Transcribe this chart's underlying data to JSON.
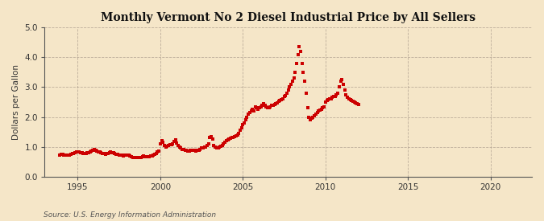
{
  "title": "Monthly Vermont No 2 Diesel Industrial Price by All Sellers",
  "ylabel": "Dollars per Gallon",
  "source": "Source: U.S. Energy Information Administration",
  "background_color": "#f5e6c8",
  "plot_bg_color": "#f5e6c8",
  "line_color": "#cc0000",
  "marker": "s",
  "markersize": 2.2,
  "xlim_left": 1993.0,
  "xlim_right": 2022.5,
  "ylim_bottom": 0.0,
  "ylim_top": 5.0,
  "xticks": [
    1995,
    2000,
    2005,
    2010,
    2015,
    2020
  ],
  "yticks": [
    0.0,
    1.0,
    2.0,
    3.0,
    4.0,
    5.0
  ],
  "data": [
    [
      1993.917,
      0.73
    ],
    [
      1994.0,
      0.75
    ],
    [
      1994.083,
      0.74
    ],
    [
      1994.167,
      0.73
    ],
    [
      1994.25,
      0.72
    ],
    [
      1994.333,
      0.71
    ],
    [
      1994.417,
      0.72
    ],
    [
      1994.5,
      0.73
    ],
    [
      1994.583,
      0.74
    ],
    [
      1994.667,
      0.76
    ],
    [
      1994.75,
      0.78
    ],
    [
      1994.833,
      0.8
    ],
    [
      1994.917,
      0.82
    ],
    [
      1995.0,
      0.84
    ],
    [
      1995.083,
      0.82
    ],
    [
      1995.167,
      0.8
    ],
    [
      1995.25,
      0.79
    ],
    [
      1995.333,
      0.78
    ],
    [
      1995.417,
      0.77
    ],
    [
      1995.5,
      0.78
    ],
    [
      1995.583,
      0.79
    ],
    [
      1995.667,
      0.8
    ],
    [
      1995.75,
      0.82
    ],
    [
      1995.833,
      0.85
    ],
    [
      1995.917,
      0.87
    ],
    [
      1996.0,
      0.9
    ],
    [
      1996.083,
      0.88
    ],
    [
      1996.167,
      0.86
    ],
    [
      1996.25,
      0.84
    ],
    [
      1996.333,
      0.82
    ],
    [
      1996.417,
      0.8
    ],
    [
      1996.5,
      0.78
    ],
    [
      1996.583,
      0.76
    ],
    [
      1996.667,
      0.75
    ],
    [
      1996.75,
      0.76
    ],
    [
      1996.833,
      0.78
    ],
    [
      1996.917,
      0.8
    ],
    [
      1997.0,
      0.82
    ],
    [
      1997.083,
      0.81
    ],
    [
      1997.167,
      0.79
    ],
    [
      1997.25,
      0.77
    ],
    [
      1997.333,
      0.75
    ],
    [
      1997.417,
      0.74
    ],
    [
      1997.5,
      0.73
    ],
    [
      1997.583,
      0.72
    ],
    [
      1997.667,
      0.71
    ],
    [
      1997.75,
      0.7
    ],
    [
      1997.833,
      0.71
    ],
    [
      1997.917,
      0.72
    ],
    [
      1998.0,
      0.73
    ],
    [
      1998.083,
      0.71
    ],
    [
      1998.167,
      0.69
    ],
    [
      1998.25,
      0.67
    ],
    [
      1998.333,
      0.65
    ],
    [
      1998.417,
      0.64
    ],
    [
      1998.5,
      0.63
    ],
    [
      1998.583,
      0.63
    ],
    [
      1998.667,
      0.63
    ],
    [
      1998.75,
      0.64
    ],
    [
      1998.833,
      0.65
    ],
    [
      1998.917,
      0.66
    ],
    [
      1999.0,
      0.68
    ],
    [
      1999.083,
      0.67
    ],
    [
      1999.167,
      0.67
    ],
    [
      1999.25,
      0.67
    ],
    [
      1999.333,
      0.67
    ],
    [
      1999.417,
      0.68
    ],
    [
      1999.5,
      0.7
    ],
    [
      1999.583,
      0.72
    ],
    [
      1999.667,
      0.75
    ],
    [
      1999.75,
      0.78
    ],
    [
      1999.833,
      0.82
    ],
    [
      1999.917,
      0.86
    ],
    [
      2000.0,
      1.1
    ],
    [
      2000.083,
      1.2
    ],
    [
      2000.167,
      1.15
    ],
    [
      2000.25,
      1.05
    ],
    [
      2000.333,
      1.0
    ],
    [
      2000.417,
      1.02
    ],
    [
      2000.5,
      1.05
    ],
    [
      2000.583,
      1.07
    ],
    [
      2000.667,
      1.08
    ],
    [
      2000.75,
      1.1
    ],
    [
      2000.833,
      1.18
    ],
    [
      2000.917,
      1.22
    ],
    [
      2001.0,
      1.12
    ],
    [
      2001.083,
      1.05
    ],
    [
      2001.167,
      1.0
    ],
    [
      2001.25,
      0.95
    ],
    [
      2001.333,
      0.92
    ],
    [
      2001.417,
      0.9
    ],
    [
      2001.5,
      0.88
    ],
    [
      2001.583,
      0.87
    ],
    [
      2001.667,
      0.86
    ],
    [
      2001.75,
      0.85
    ],
    [
      2001.833,
      0.87
    ],
    [
      2001.917,
      0.88
    ],
    [
      2002.0,
      0.88
    ],
    [
      2002.083,
      0.87
    ],
    [
      2002.167,
      0.86
    ],
    [
      2002.25,
      0.87
    ],
    [
      2002.333,
      0.89
    ],
    [
      2002.417,
      0.92
    ],
    [
      2002.5,
      0.95
    ],
    [
      2002.583,
      0.97
    ],
    [
      2002.667,
      0.98
    ],
    [
      2002.75,
      1.0
    ],
    [
      2002.833,
      1.05
    ],
    [
      2002.917,
      1.1
    ],
    [
      2003.0,
      1.3
    ],
    [
      2003.083,
      1.35
    ],
    [
      2003.167,
      1.25
    ],
    [
      2003.25,
      1.05
    ],
    [
      2003.333,
      1.0
    ],
    [
      2003.417,
      0.97
    ],
    [
      2003.5,
      0.97
    ],
    [
      2003.583,
      1.0
    ],
    [
      2003.667,
      1.02
    ],
    [
      2003.75,
      1.05
    ],
    [
      2003.833,
      1.1
    ],
    [
      2003.917,
      1.15
    ],
    [
      2004.0,
      1.2
    ],
    [
      2004.083,
      1.22
    ],
    [
      2004.167,
      1.25
    ],
    [
      2004.25,
      1.28
    ],
    [
      2004.333,
      1.3
    ],
    [
      2004.417,
      1.32
    ],
    [
      2004.5,
      1.35
    ],
    [
      2004.583,
      1.38
    ],
    [
      2004.667,
      1.4
    ],
    [
      2004.75,
      1.45
    ],
    [
      2004.833,
      1.55
    ],
    [
      2004.917,
      1.65
    ],
    [
      2005.0,
      1.75
    ],
    [
      2005.083,
      1.8
    ],
    [
      2005.167,
      1.9
    ],
    [
      2005.25,
      2.0
    ],
    [
      2005.333,
      2.1
    ],
    [
      2005.417,
      2.15
    ],
    [
      2005.5,
      2.2
    ],
    [
      2005.583,
      2.25
    ],
    [
      2005.667,
      2.2
    ],
    [
      2005.75,
      2.35
    ],
    [
      2005.833,
      2.3
    ],
    [
      2005.917,
      2.25
    ],
    [
      2006.0,
      2.3
    ],
    [
      2006.083,
      2.35
    ],
    [
      2006.167,
      2.4
    ],
    [
      2006.25,
      2.45
    ],
    [
      2006.333,
      2.4
    ],
    [
      2006.417,
      2.35
    ],
    [
      2006.5,
      2.3
    ],
    [
      2006.583,
      2.32
    ],
    [
      2006.667,
      2.35
    ],
    [
      2006.75,
      2.38
    ],
    [
      2006.833,
      2.4
    ],
    [
      2006.917,
      2.42
    ],
    [
      2007.0,
      2.45
    ],
    [
      2007.083,
      2.48
    ],
    [
      2007.167,
      2.52
    ],
    [
      2007.25,
      2.55
    ],
    [
      2007.333,
      2.58
    ],
    [
      2007.417,
      2.62
    ],
    [
      2007.5,
      2.68
    ],
    [
      2007.583,
      2.72
    ],
    [
      2007.667,
      2.8
    ],
    [
      2007.75,
      2.9
    ],
    [
      2007.833,
      3.0
    ],
    [
      2007.917,
      3.1
    ],
    [
      2008.0,
      3.2
    ],
    [
      2008.083,
      3.3
    ],
    [
      2008.167,
      3.5
    ],
    [
      2008.25,
      3.8
    ],
    [
      2008.333,
      4.1
    ],
    [
      2008.417,
      4.35
    ],
    [
      2008.5,
      4.2
    ],
    [
      2008.583,
      3.8
    ],
    [
      2008.667,
      3.5
    ],
    [
      2008.75,
      3.2
    ],
    [
      2008.833,
      2.8
    ],
    [
      2008.917,
      2.3
    ],
    [
      2009.0,
      2.0
    ],
    [
      2009.083,
      1.9
    ],
    [
      2009.167,
      1.95
    ],
    [
      2009.25,
      2.0
    ],
    [
      2009.333,
      2.05
    ],
    [
      2009.417,
      2.1
    ],
    [
      2009.5,
      2.15
    ],
    [
      2009.583,
      2.2
    ],
    [
      2009.667,
      2.22
    ],
    [
      2009.75,
      2.25
    ],
    [
      2009.833,
      2.3
    ],
    [
      2009.917,
      2.35
    ],
    [
      2010.0,
      2.5
    ],
    [
      2010.083,
      2.55
    ],
    [
      2010.167,
      2.58
    ],
    [
      2010.25,
      2.6
    ],
    [
      2010.333,
      2.62
    ],
    [
      2010.417,
      2.65
    ],
    [
      2010.5,
      2.68
    ],
    [
      2010.583,
      2.7
    ],
    [
      2010.667,
      2.75
    ],
    [
      2010.75,
      2.8
    ],
    [
      2010.833,
      3.0
    ],
    [
      2010.917,
      3.2
    ],
    [
      2011.0,
      3.25
    ],
    [
      2011.083,
      3.1
    ],
    [
      2011.167,
      2.9
    ],
    [
      2011.25,
      2.75
    ],
    [
      2011.333,
      2.65
    ],
    [
      2011.417,
      2.6
    ],
    [
      2011.5,
      2.58
    ],
    [
      2011.583,
      2.55
    ],
    [
      2011.667,
      2.52
    ],
    [
      2011.75,
      2.5
    ],
    [
      2011.833,
      2.48
    ],
    [
      2011.917,
      2.45
    ],
    [
      2012.0,
      2.42
    ]
  ]
}
